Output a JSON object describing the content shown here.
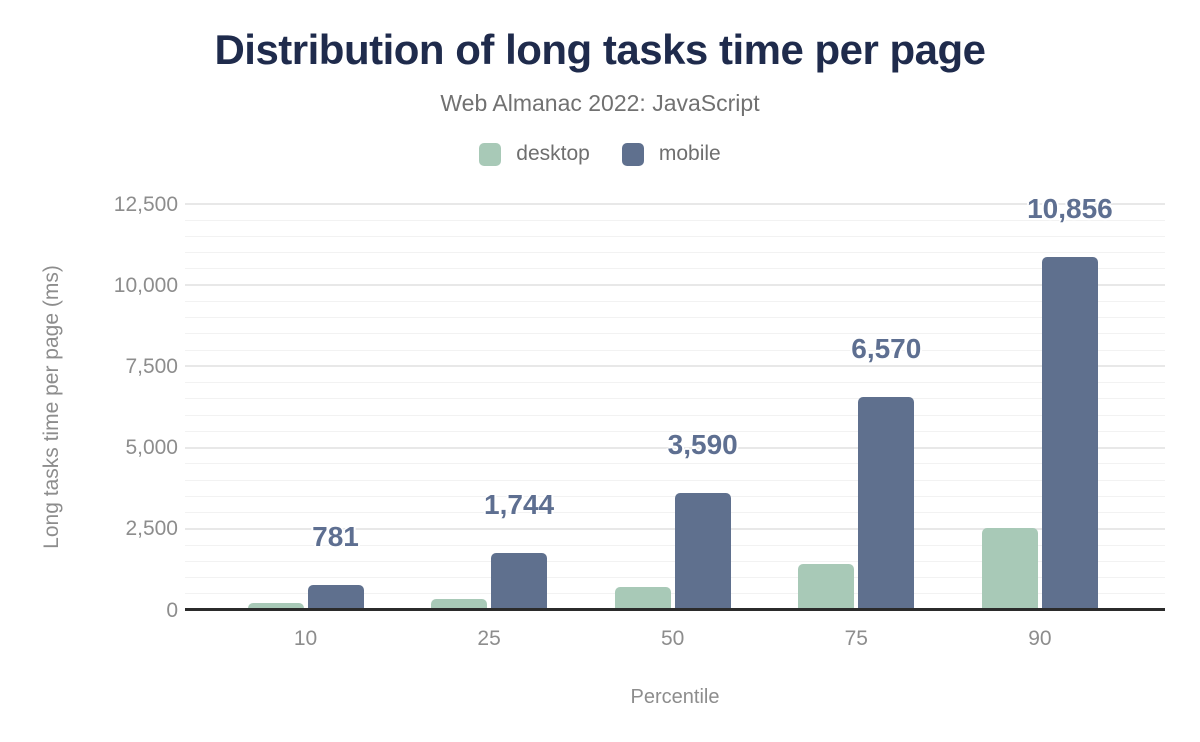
{
  "chart_data": {
    "type": "bar",
    "title": "Distribution of long tasks time per page",
    "subtitle": "Web Almanac 2022: JavaScript",
    "categories": [
      "10",
      "25",
      "50",
      "75",
      "90"
    ],
    "series": [
      {
        "name": "desktop",
        "color": "#a8c9b7",
        "values": [
          210,
          330,
          720,
          1410,
          2520
        ],
        "estimated": true
      },
      {
        "name": "mobile",
        "color": "#5f708e",
        "values": [
          781,
          1744,
          3590,
          6570,
          10856
        ],
        "data_labels": [
          "781",
          "1,744",
          "3,590",
          "6,570",
          "10,856"
        ]
      }
    ],
    "xlabel": "Percentile",
    "ylabel": "Long tasks time per page (ms)",
    "ylim": [
      0,
      12500
    ],
    "yticks": [
      0,
      2500,
      5000,
      7500,
      10000,
      12500
    ],
    "ytick_labels": [
      "0",
      "2,500",
      "5,000",
      "7,500",
      "10,000",
      "12,500"
    ],
    "grid": {
      "major_step": 2500,
      "minor_step": 500,
      "grid_on": true
    },
    "legend_position": "top",
    "colors": {
      "title": "#1f2b4c",
      "subtitle_text": "#717171",
      "axis_text": "#8d8d8d",
      "data_label": "#5e6f91",
      "axis_line": "#2b2b2b",
      "grid_major": "#e8e8e8",
      "grid_minor": "#f2f2f2",
      "background": "#ffffff"
    }
  }
}
